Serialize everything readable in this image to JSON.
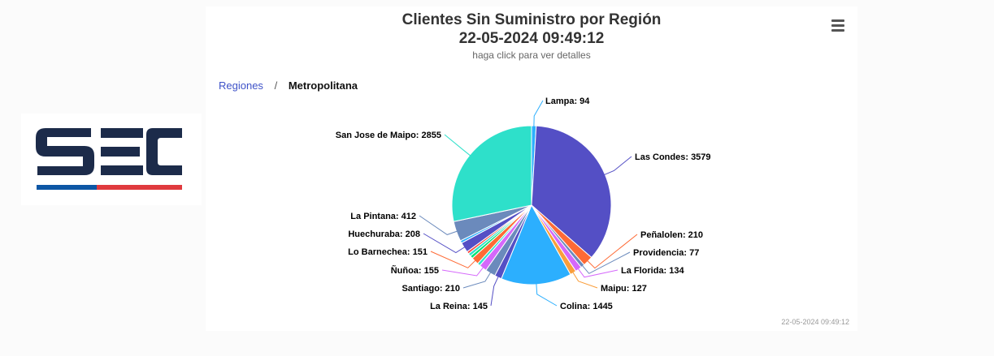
{
  "header": {
    "title_line1": "Clientes Sin Suministro por Región",
    "title_line2": "22-05-2024 09:49:12",
    "subtitle": "haga click para ver detalles"
  },
  "menu": {
    "icon": "hamburger-menu-icon"
  },
  "breadcrumb": {
    "root": "Regiones",
    "separator": "/",
    "current": "Metropolitana"
  },
  "logo": {
    "text": "SEC",
    "colors": {
      "navy": "#1c2b4a",
      "blue": "#0d57a5",
      "red": "#e03a3e"
    }
  },
  "chart_data": {
    "type": "pie",
    "title": "Clientes Sin Suministro por Región",
    "slices": [
      {
        "name": "Lampa",
        "value": 94,
        "color": "#2caffe"
      },
      {
        "name": "Las Condes",
        "value": 3579,
        "color": "#544fc5"
      },
      {
        "name": "Peñalolen",
        "value": 210,
        "color": "#fe6a35"
      },
      {
        "name": "Providencia",
        "value": 77,
        "color": "#6b8abc"
      },
      {
        "name": "La Florida",
        "value": 134,
        "color": "#d568fb"
      },
      {
        "name": "Maipu",
        "value": 127,
        "color": "#fa9e3b"
      },
      {
        "name": "Colina",
        "value": 1445,
        "color": "#2caffe"
      },
      {
        "name": "La Reina",
        "value": 145,
        "color": "#544fc5"
      },
      {
        "name": "Santiago",
        "value": 210,
        "color": "#6b8abc"
      },
      {
        "name": "Ñuñoa",
        "value": 155,
        "color": "#d568fb"
      },
      {
        "name": "",
        "value": 60,
        "color": "#2ee0ca"
      },
      {
        "name": "Lo Barnechea",
        "value": 151,
        "color": "#fe6a35"
      },
      {
        "name": "",
        "value": 60,
        "color": "#00e272"
      },
      {
        "name": "",
        "value": 60,
        "color": "#2ee0ca"
      },
      {
        "name": "",
        "value": 50,
        "color": "#fa4b42"
      },
      {
        "name": "Huechuraba",
        "value": 208,
        "color": "#544fc5"
      },
      {
        "name": "",
        "value": 50,
        "color": "#2caffe"
      },
      {
        "name": "La Pintana",
        "value": 412,
        "color": "#6b8abc"
      },
      {
        "name": "San Jose de Maipo",
        "value": 2855,
        "color": "#2ee0ca"
      }
    ]
  },
  "credits": "22-05-2024 09:49:12"
}
